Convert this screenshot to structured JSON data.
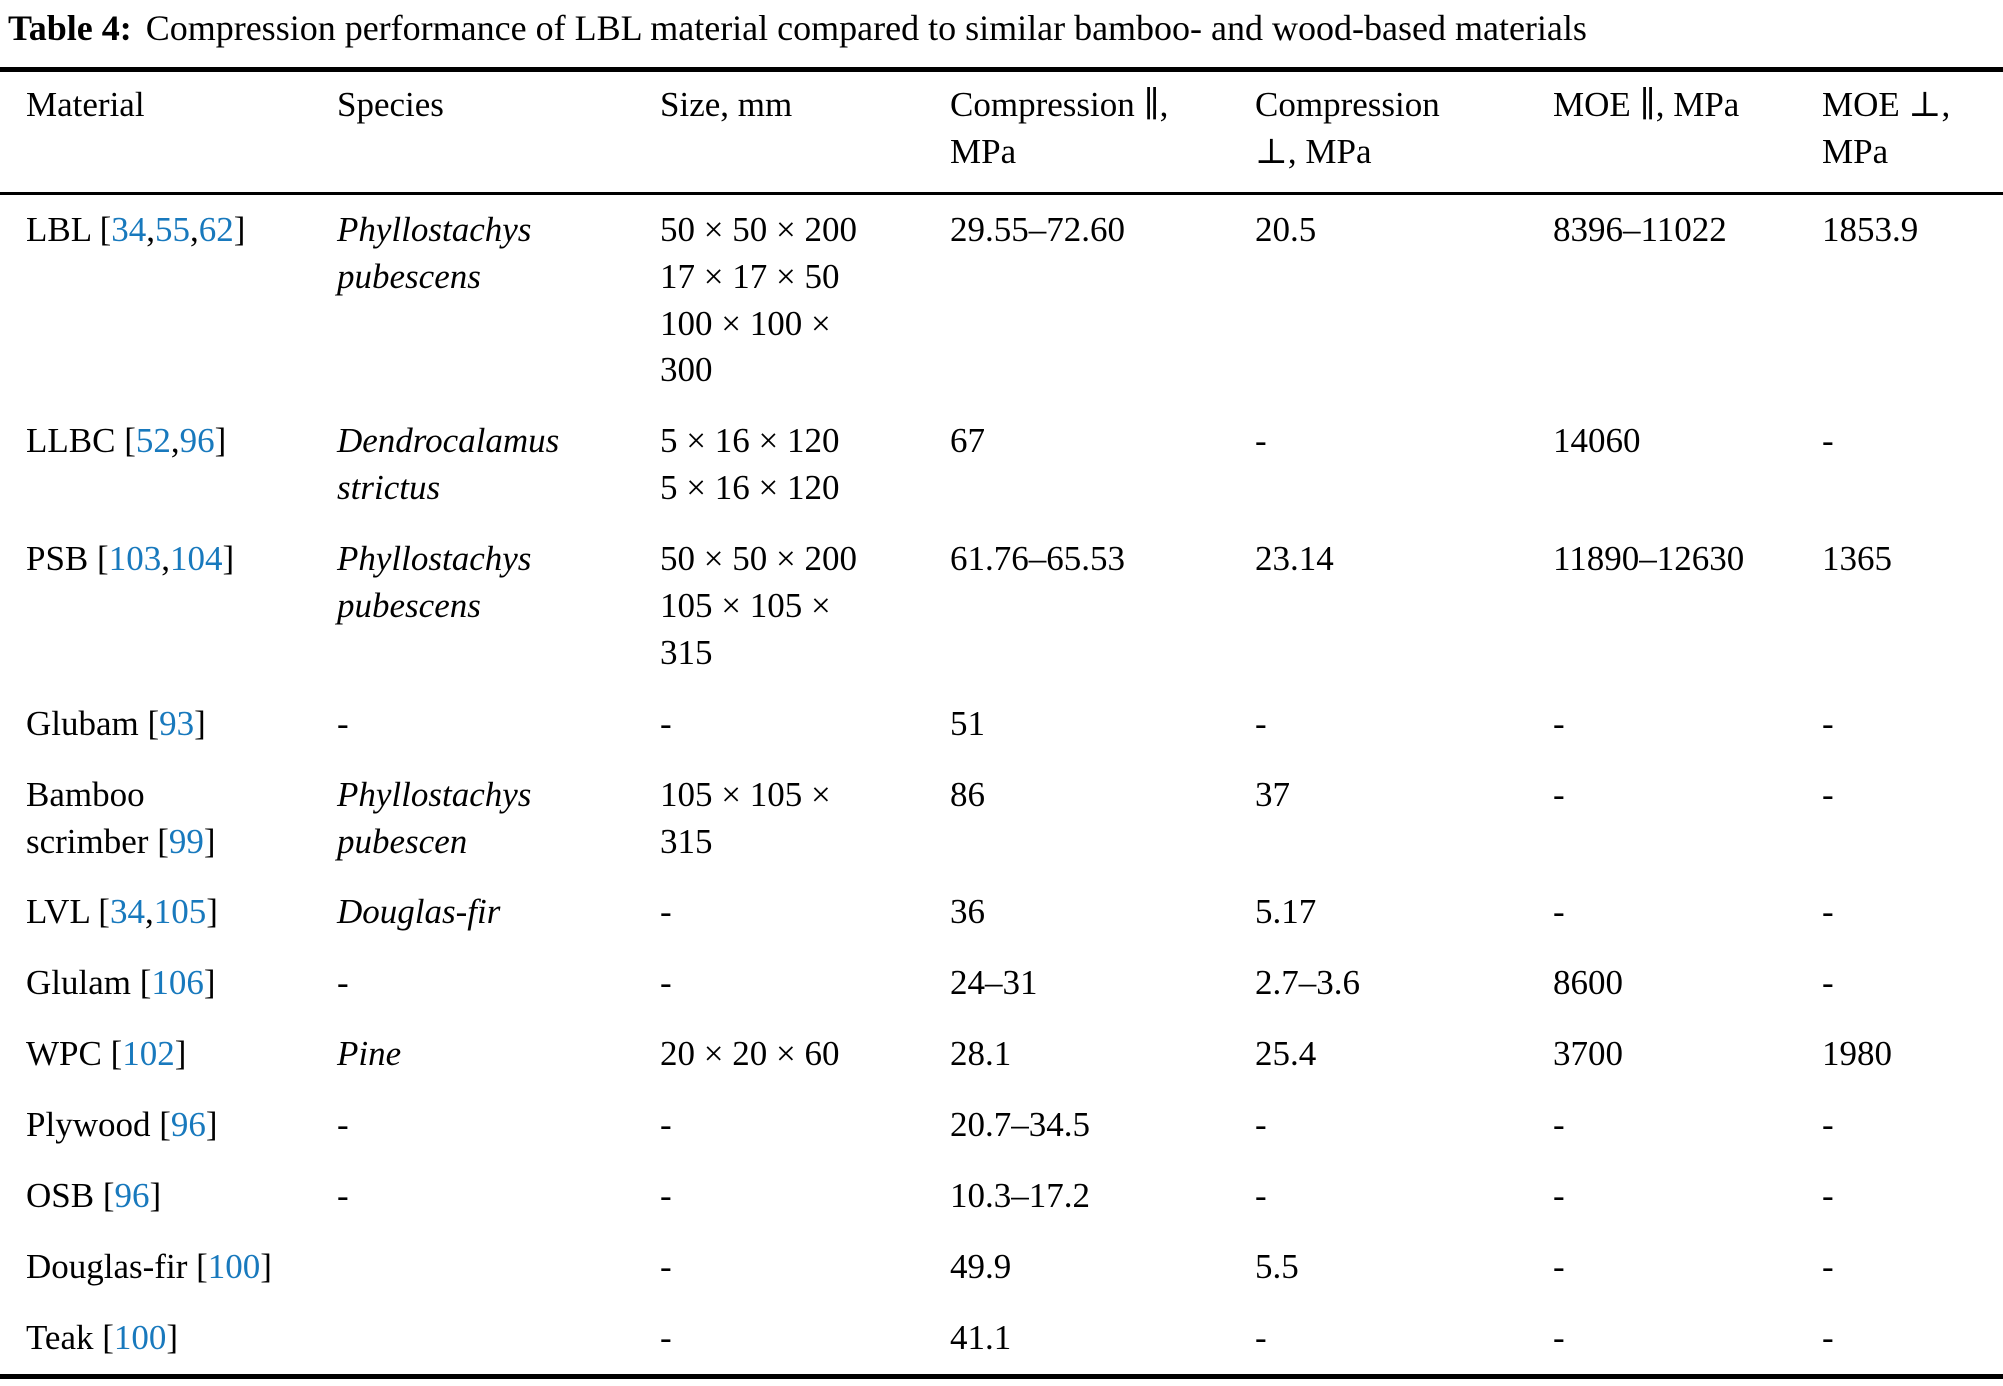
{
  "colors": {
    "reference_link": "#1879bd"
  },
  "title": {
    "label": "Table 4:",
    "text": "Compression performance of LBL material compared to similar bamboo- and wood-based materials"
  },
  "table": {
    "columns": [
      {
        "id": "material",
        "lines": [
          "Material"
        ]
      },
      {
        "id": "species",
        "lines": [
          "Species"
        ]
      },
      {
        "id": "size",
        "lines": [
          "Size, mm"
        ]
      },
      {
        "id": "compression_parallel",
        "lines": [
          "Compression ∥,",
          "MPa"
        ]
      },
      {
        "id": "compression_perpendicular",
        "lines": [
          "Compression",
          "⊥, MPa"
        ]
      },
      {
        "id": "moe_parallel",
        "lines": [
          "MOE ∥, MPa"
        ]
      },
      {
        "id": "moe_perpendicular",
        "lines": [
          "MOE ⊥,",
          "MPa"
        ]
      }
    ],
    "rows": [
      {
        "name_lines": [
          "LBL"
        ],
        "refs": [
          "34",
          "55",
          "62"
        ],
        "species": "Phyllostachys pubescens",
        "size": [
          "50 × 50 × 200",
          "17 × 17 × 50",
          "100 × 100 × 300"
        ],
        "compression_parallel": "29.55–72.60",
        "compression_perpendicular": "20.5",
        "moe_parallel": "8396–11022",
        "moe_perpendicular": "1853.9"
      },
      {
        "name_lines": [
          "LLBC"
        ],
        "refs": [
          "52",
          "96"
        ],
        "species": "Dendrocalamus strictus",
        "size": [
          "5 × 16 × 120",
          "5 × 16 × 120"
        ],
        "compression_parallel": "67",
        "compression_perpendicular": "-",
        "moe_parallel": "14060",
        "moe_perpendicular": "-"
      },
      {
        "name_lines": [
          "PSB"
        ],
        "refs": [
          "103",
          "104"
        ],
        "species": "Phyllostachys pubescens",
        "size": [
          "50 × 50 × 200",
          "105 × 105 × 315"
        ],
        "compression_parallel": "61.76–65.53",
        "compression_perpendicular": "23.14",
        "moe_parallel": "11890–12630",
        "moe_perpendicular": "1365"
      },
      {
        "name_lines": [
          "Glubam"
        ],
        "refs": [
          "93"
        ],
        "species": "-",
        "size": [
          "-"
        ],
        "compression_parallel": "51",
        "compression_perpendicular": "-",
        "moe_parallel": "-",
        "moe_perpendicular": "-"
      },
      {
        "name_lines": [
          "Bamboo",
          "scrimber"
        ],
        "refs": [
          "99"
        ],
        "species": "Phyllostachys pubescen",
        "size": [
          "105 × 105 × 315"
        ],
        "compression_parallel": "86",
        "compression_perpendicular": "37",
        "moe_parallel": "-",
        "moe_perpendicular": "-"
      },
      {
        "name_lines": [
          "LVL"
        ],
        "refs": [
          "34",
          "105"
        ],
        "species": "Douglas-fir",
        "size": [
          "-"
        ],
        "compression_parallel": "36",
        "compression_perpendicular": "5.17",
        "moe_parallel": "-",
        "moe_perpendicular": "-"
      },
      {
        "name_lines": [
          "Glulam"
        ],
        "refs": [
          "106"
        ],
        "species": "-",
        "size": [
          "-"
        ],
        "compression_parallel": "24–31",
        "compression_perpendicular": "2.7–3.6",
        "moe_parallel": "8600",
        "moe_perpendicular": "-"
      },
      {
        "name_lines": [
          "WPC"
        ],
        "refs": [
          "102"
        ],
        "species": "Pine",
        "size": [
          "20 × 20 × 60"
        ],
        "compression_parallel": "28.1",
        "compression_perpendicular": "25.4",
        "moe_parallel": "3700",
        "moe_perpendicular": "1980"
      },
      {
        "name_lines": [
          "Plywood"
        ],
        "refs": [
          "96"
        ],
        "species": "-",
        "size": [
          "-"
        ],
        "compression_parallel": "20.7–34.5",
        "compression_perpendicular": "-",
        "moe_parallel": "-",
        "moe_perpendicular": "-"
      },
      {
        "name_lines": [
          "OSB"
        ],
        "refs": [
          "96"
        ],
        "species": "-",
        "size": [
          "-"
        ],
        "compression_parallel": "10.3–17.2",
        "compression_perpendicular": "-",
        "moe_parallel": "-",
        "moe_perpendicular": "-"
      },
      {
        "name_lines": [
          "Douglas-fir"
        ],
        "refs": [
          "100"
        ],
        "species": "",
        "size": [
          "-"
        ],
        "compression_parallel": "49.9",
        "compression_perpendicular": "5.5",
        "moe_parallel": "-",
        "moe_perpendicular": "-"
      },
      {
        "name_lines": [
          "Teak"
        ],
        "refs": [
          "100"
        ],
        "species": "",
        "size": [
          "-"
        ],
        "compression_parallel": "41.1",
        "compression_perpendicular": "-",
        "moe_parallel": "-",
        "moe_perpendicular": "-"
      }
    ]
  }
}
